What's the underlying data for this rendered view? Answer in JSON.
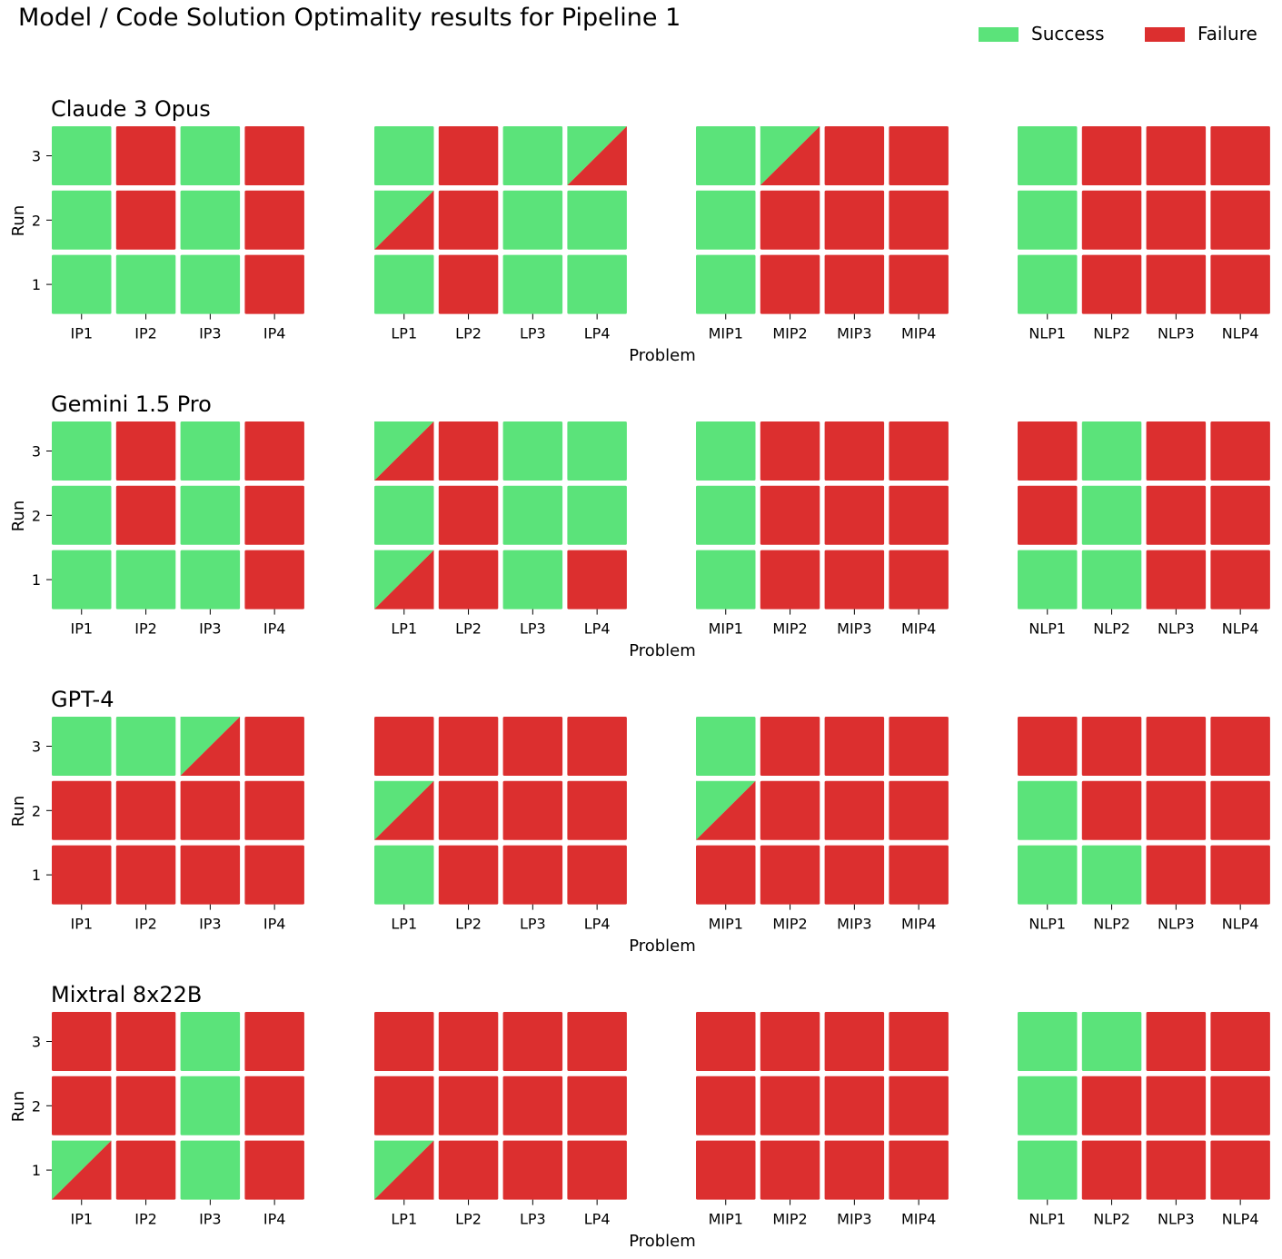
{
  "page_title": "Model / Code Solution Optimality results for Pipeline 1",
  "legend": {
    "success_label": "Success",
    "failure_label": "Failure",
    "success_color": "#5be37a",
    "failure_color": "#dc2f2f"
  },
  "chart_data": {
    "type": "heatmap",
    "title": "Model / Code Solution Optimality results for Pipeline 1",
    "xlabel": "Problem",
    "ylabel": "Run",
    "runs": [
      "1",
      "2",
      "3"
    ],
    "groups": [
      [
        "IP1",
        "IP2",
        "IP3",
        "IP4"
      ],
      [
        "LP1",
        "LP2",
        "LP3",
        "LP4"
      ],
      [
        "MIP1",
        "MIP2",
        "MIP3",
        "MIP4"
      ],
      [
        "NLP1",
        "NLP2",
        "NLP3",
        "NLP4"
      ]
    ],
    "cell_legend": {
      "S": "Success",
      "F": "Failure",
      "P": "Partial (split cell: Success / Failure)"
    },
    "models": [
      {
        "name": "Claude 3 Opus",
        "rows": {
          "3": [
            "S",
            "F",
            "S",
            "F",
            "S",
            "F",
            "S",
            "P",
            "S",
            "P",
            "F",
            "F",
            "S",
            "F",
            "F",
            "F"
          ],
          "2": [
            "S",
            "F",
            "S",
            "F",
            "P",
            "F",
            "S",
            "S",
            "S",
            "F",
            "F",
            "F",
            "S",
            "F",
            "F",
            "F"
          ],
          "1": [
            "S",
            "S",
            "S",
            "F",
            "S",
            "F",
            "S",
            "S",
            "S",
            "F",
            "F",
            "F",
            "S",
            "F",
            "F",
            "F"
          ]
        }
      },
      {
        "name": "Gemini 1.5 Pro",
        "rows": {
          "3": [
            "S",
            "F",
            "S",
            "F",
            "P",
            "F",
            "S",
            "S",
            "S",
            "F",
            "F",
            "F",
            "F",
            "S",
            "F",
            "F"
          ],
          "2": [
            "S",
            "F",
            "S",
            "F",
            "S",
            "F",
            "S",
            "S",
            "S",
            "F",
            "F",
            "F",
            "F",
            "S",
            "F",
            "F"
          ],
          "1": [
            "S",
            "S",
            "S",
            "F",
            "P",
            "F",
            "S",
            "F",
            "S",
            "F",
            "F",
            "F",
            "S",
            "S",
            "F",
            "F"
          ]
        }
      },
      {
        "name": "GPT-4",
        "rows": {
          "3": [
            "S",
            "S",
            "P",
            "F",
            "F",
            "F",
            "F",
            "F",
            "S",
            "F",
            "F",
            "F",
            "F",
            "F",
            "F",
            "F"
          ],
          "2": [
            "F",
            "F",
            "F",
            "F",
            "P",
            "F",
            "F",
            "F",
            "P",
            "F",
            "F",
            "F",
            "S",
            "F",
            "F",
            "F"
          ],
          "1": [
            "F",
            "F",
            "F",
            "F",
            "S",
            "F",
            "F",
            "F",
            "F",
            "F",
            "F",
            "F",
            "S",
            "S",
            "F",
            "F"
          ]
        }
      },
      {
        "name": "Mixtral 8x22B",
        "rows": {
          "3": [
            "F",
            "F",
            "S",
            "F",
            "F",
            "F",
            "F",
            "F",
            "F",
            "F",
            "F",
            "F",
            "S",
            "S",
            "F",
            "F"
          ],
          "2": [
            "F",
            "F",
            "S",
            "F",
            "F",
            "F",
            "F",
            "F",
            "F",
            "F",
            "F",
            "F",
            "S",
            "F",
            "F",
            "F"
          ],
          "1": [
            "P",
            "F",
            "S",
            "F",
            "P",
            "F",
            "F",
            "F",
            "F",
            "F",
            "F",
            "F",
            "S",
            "F",
            "F",
            "F"
          ]
        }
      }
    ]
  }
}
